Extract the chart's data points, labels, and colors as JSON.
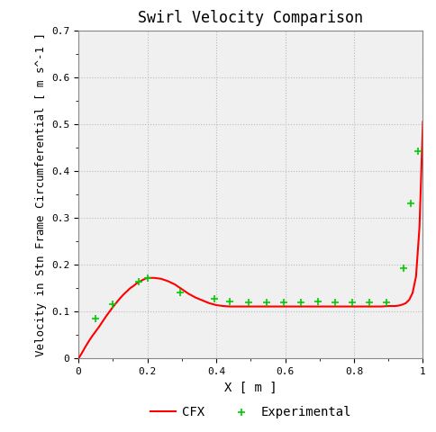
{
  "title": "Swirl Velocity Comparison",
  "xlabel": "X [ m ]",
  "ylabel": "Velocity in Stn Frame Circumferential [ m s^-1 ]",
  "xlim": [
    0,
    1.0
  ],
  "ylim": [
    0,
    0.7
  ],
  "yticks": [
    0.0,
    0.1,
    0.2,
    0.3,
    0.4,
    0.5,
    0.6,
    0.7
  ],
  "xticks": [
    0.0,
    0.2,
    0.4,
    0.6,
    0.8,
    1.0
  ],
  "line_color": "#ff0000",
  "marker_color": "#00cc00",
  "background_color": "#ffffff",
  "plot_bg_color": "#f0f0f0",
  "grid_color": "#bbbbbb",
  "cfx_x": [
    0.0,
    0.01,
    0.02,
    0.03,
    0.04,
    0.05,
    0.06,
    0.07,
    0.08,
    0.09,
    0.1,
    0.11,
    0.12,
    0.13,
    0.14,
    0.15,
    0.16,
    0.17,
    0.18,
    0.19,
    0.2,
    0.21,
    0.22,
    0.24,
    0.26,
    0.28,
    0.3,
    0.32,
    0.34,
    0.36,
    0.38,
    0.4,
    0.42,
    0.44,
    0.46,
    0.48,
    0.5,
    0.52,
    0.54,
    0.56,
    0.58,
    0.6,
    0.62,
    0.64,
    0.66,
    0.68,
    0.7,
    0.72,
    0.74,
    0.76,
    0.78,
    0.8,
    0.82,
    0.84,
    0.86,
    0.88,
    0.9,
    0.91,
    0.92,
    0.93,
    0.94,
    0.95,
    0.96,
    0.97,
    0.98,
    0.99,
    1.0
  ],
  "cfx_y": [
    0.0,
    0.012,
    0.025,
    0.037,
    0.048,
    0.058,
    0.068,
    0.079,
    0.09,
    0.1,
    0.11,
    0.119,
    0.128,
    0.136,
    0.143,
    0.15,
    0.155,
    0.161,
    0.165,
    0.169,
    0.172,
    0.172,
    0.172,
    0.17,
    0.165,
    0.158,
    0.148,
    0.138,
    0.13,
    0.124,
    0.118,
    0.114,
    0.112,
    0.111,
    0.111,
    0.111,
    0.111,
    0.111,
    0.111,
    0.111,
    0.111,
    0.111,
    0.111,
    0.111,
    0.111,
    0.111,
    0.111,
    0.111,
    0.111,
    0.111,
    0.111,
    0.111,
    0.111,
    0.111,
    0.111,
    0.111,
    0.112,
    0.112,
    0.112,
    0.113,
    0.115,
    0.118,
    0.125,
    0.14,
    0.175,
    0.28,
    0.505
  ],
  "exp_x": [
    0.05,
    0.1,
    0.175,
    0.2,
    0.295,
    0.395,
    0.44,
    0.495,
    0.545,
    0.595,
    0.645,
    0.695,
    0.745,
    0.795,
    0.845,
    0.895,
    0.945,
    0.965,
    0.985
  ],
  "exp_y": [
    0.085,
    0.115,
    0.163,
    0.172,
    0.14,
    0.127,
    0.121,
    0.12,
    0.12,
    0.12,
    0.12,
    0.121,
    0.12,
    0.12,
    0.12,
    0.12,
    0.192,
    0.33,
    0.442
  ],
  "legend_cfx": "CFX",
  "legend_exp": "Experimental"
}
